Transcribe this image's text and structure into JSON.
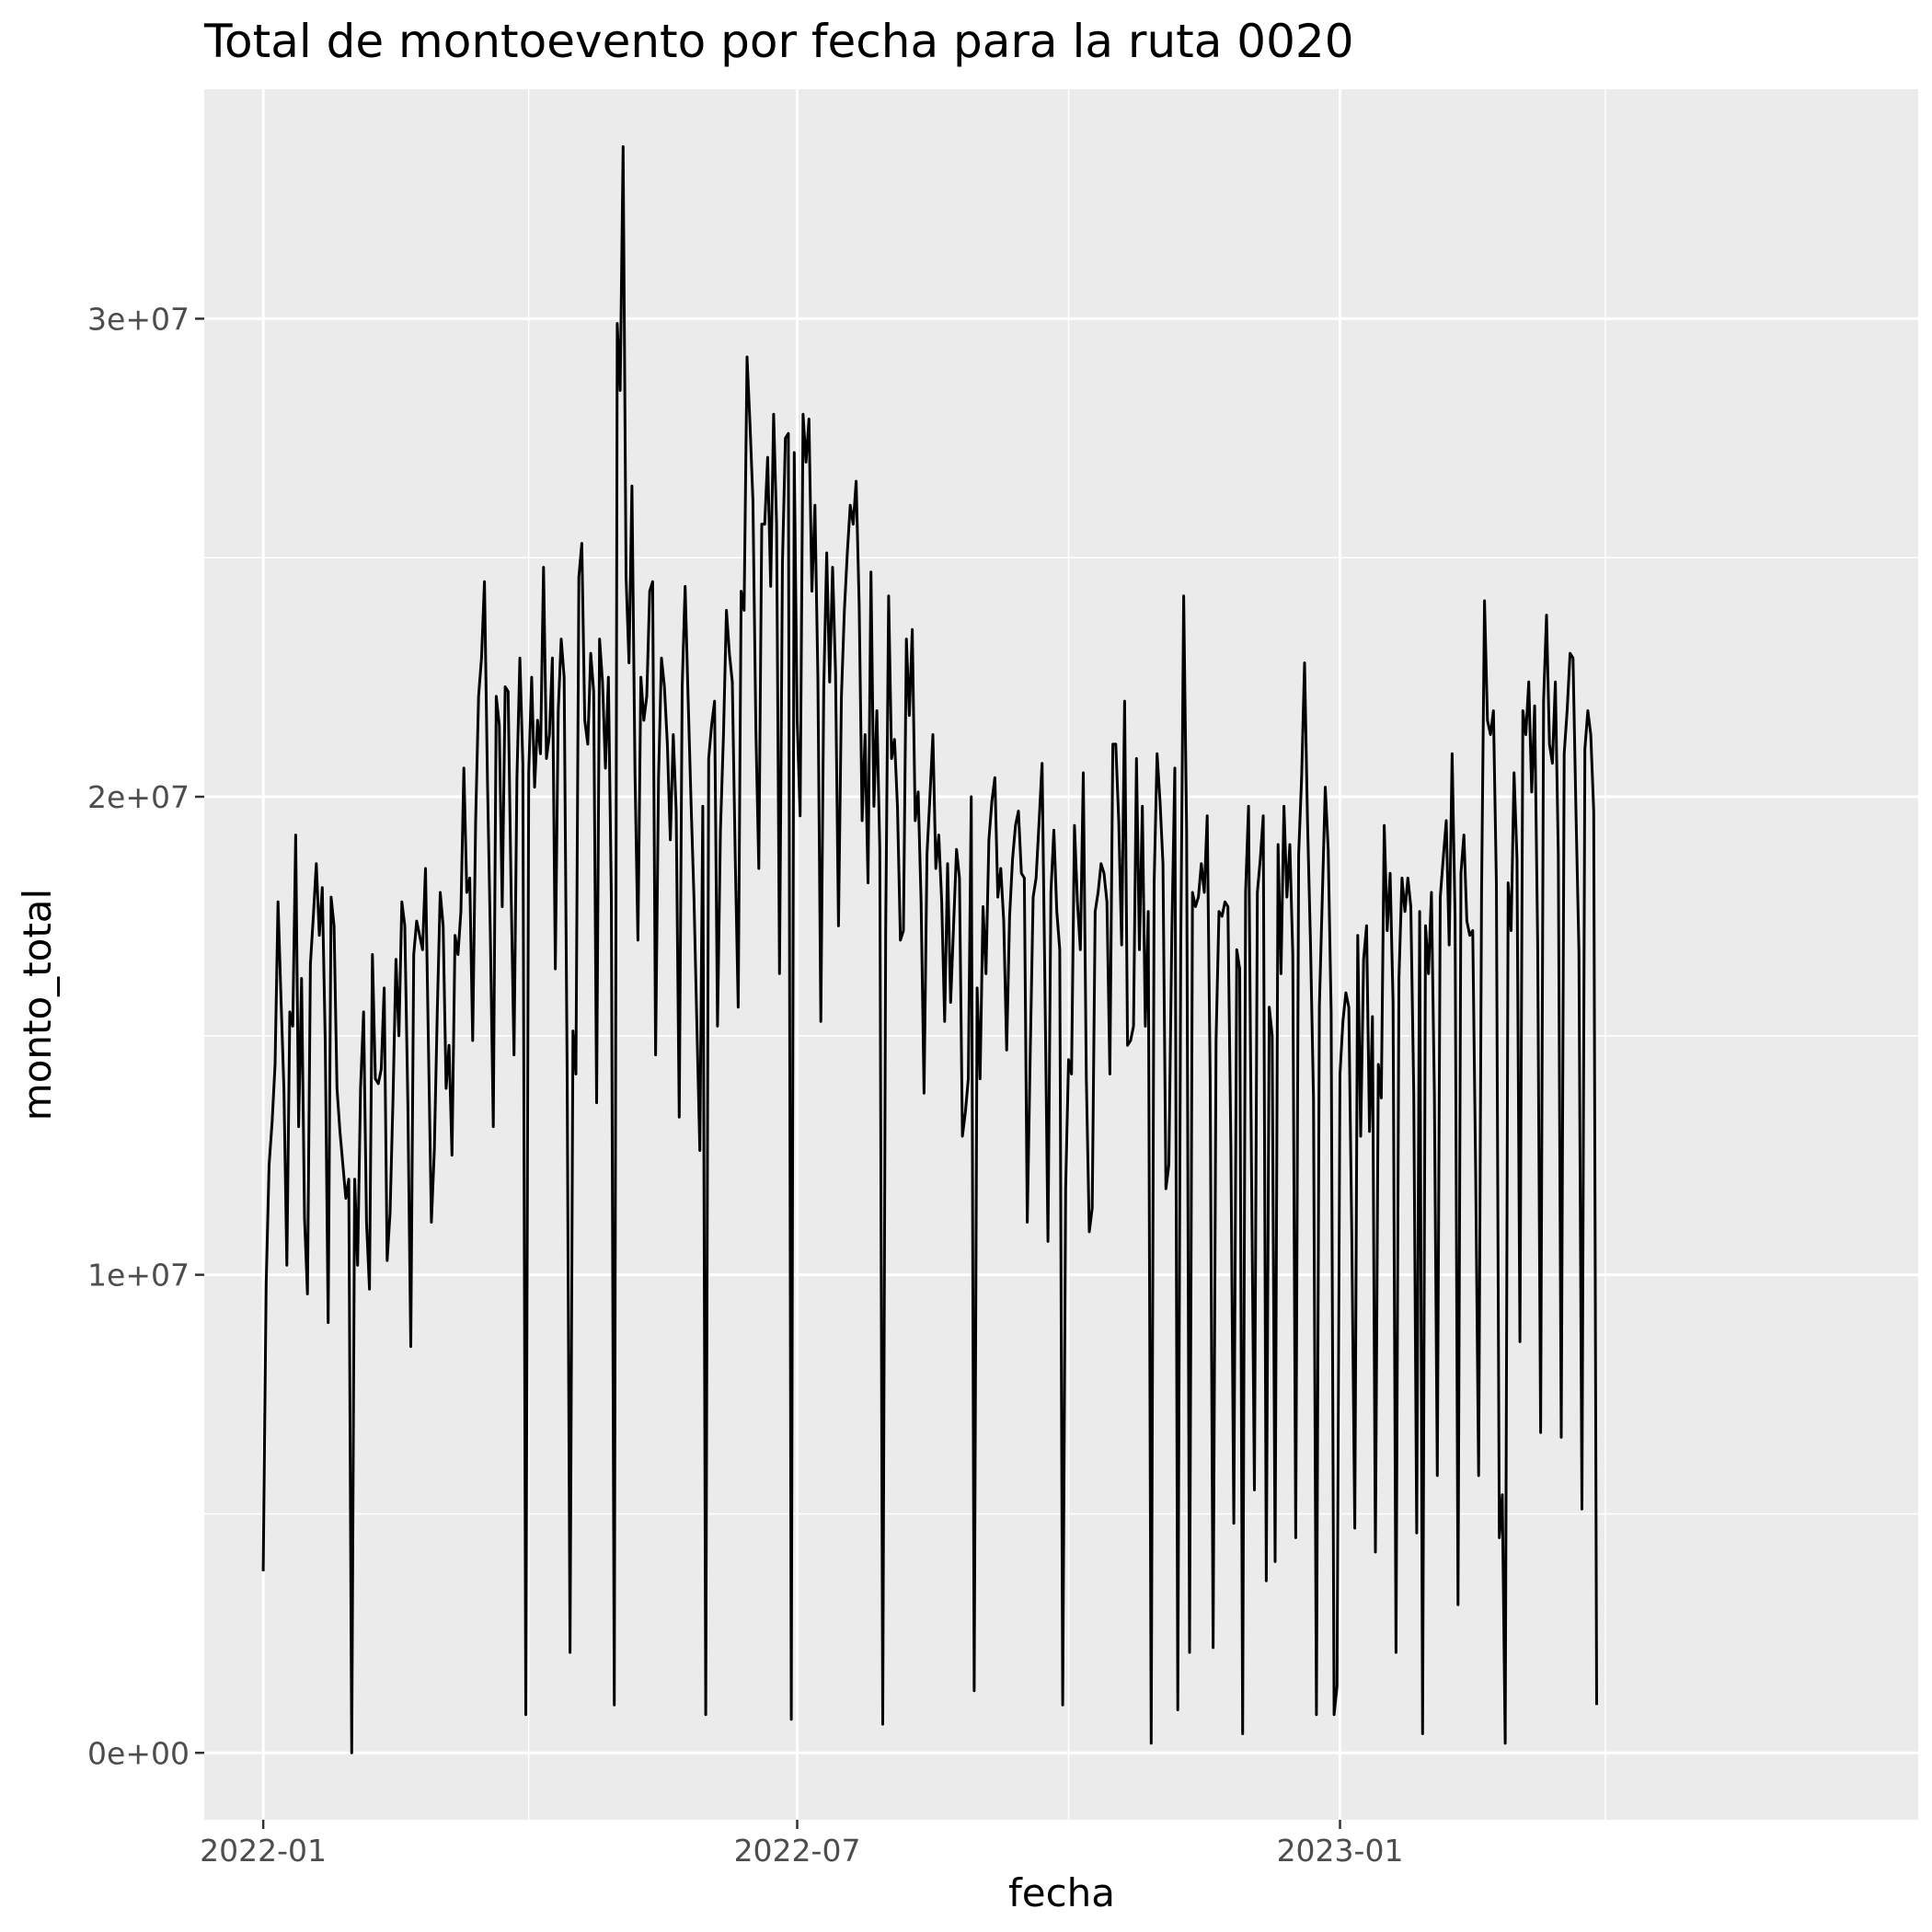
{
  "chart_data": {
    "type": "line",
    "title": "Total de montoevento por fecha para la ruta 0020",
    "xlabel": "fecha",
    "ylabel": "monto_total",
    "x_range": [
      "2021-12-12",
      "2023-07-16"
    ],
    "ylim": [
      -1400000,
      34800000
    ],
    "x_ticks": [
      {
        "date": "2022-01-01",
        "label": "2022-01"
      },
      {
        "date": "2022-07-01",
        "label": "2022-07"
      },
      {
        "date": "2023-01-01",
        "label": "2023-01"
      }
    ],
    "x_minor_ticks": [
      "2022-04-01",
      "2022-10-01",
      "2023-04-01"
    ],
    "y_ticks": [
      {
        "value": 0,
        "label": "0e+00"
      },
      {
        "value": 10000000,
        "label": "1e+07"
      },
      {
        "value": 20000000,
        "label": "2e+07"
      },
      {
        "value": 30000000,
        "label": "3e+07"
      }
    ],
    "y_minor_ticks": [
      5000000,
      15000000,
      25000000
    ],
    "grid": true,
    "colors": {
      "panel": "#ebebeb",
      "grid": "#ffffff",
      "line": "#000000",
      "axis_text": "#4d4d4d"
    },
    "series": [
      {
        "start_date": "2022-01-01",
        "step_days": 1,
        "values": [
          3800000,
          9800000,
          12300000,
          13200000,
          14400000,
          17800000,
          15800000,
          13900000,
          10200000,
          15500000,
          15200000,
          19200000,
          13100000,
          16200000,
          11200000,
          9600000,
          16500000,
          17500000,
          18600000,
          17100000,
          18100000,
          14900000,
          9000000,
          17900000,
          17300000,
          13900000,
          13000000,
          12300000,
          11600000,
          12000000,
          0,
          12000000,
          10200000,
          13900000,
          15500000,
          11100000,
          9700000,
          16700000,
          14100000,
          14000000,
          14300000,
          16000000,
          10300000,
          11300000,
          13700000,
          16600000,
          15000000,
          17800000,
          17300000,
          13600000,
          8500000,
          16700000,
          17400000,
          17100000,
          16800000,
          18500000,
          14800000,
          11100000,
          12600000,
          15500000,
          18000000,
          17300000,
          13900000,
          14800000,
          12500000,
          17100000,
          16700000,
          17600000,
          20600000,
          18000000,
          18300000,
          14900000,
          19500000,
          22100000,
          22900000,
          24500000,
          20400000,
          17100000,
          13100000,
          22100000,
          21500000,
          17700000,
          22300000,
          22200000,
          18100000,
          14600000,
          20400000,
          22900000,
          20700000,
          800000,
          20500000,
          22500000,
          20200000,
          21600000,
          20900000,
          24800000,
          20800000,
          21300000,
          22900000,
          16400000,
          21800000,
          23300000,
          22500000,
          14400000,
          2100000,
          15100000,
          14200000,
          24600000,
          25300000,
          21600000,
          21100000,
          23000000,
          22200000,
          13600000,
          23300000,
          22400000,
          20600000,
          22500000,
          17900000,
          1000000,
          29900000,
          28500000,
          33600000,
          24600000,
          22800000,
          26500000,
          20500000,
          17000000,
          22500000,
          21600000,
          22100000,
          24300000,
          24500000,
          14600000,
          20400000,
          22900000,
          22300000,
          21100000,
          19100000,
          21300000,
          19700000,
          13300000,
          22300000,
          24400000,
          22100000,
          19900000,
          17900000,
          15200000,
          12600000,
          19800000,
          800000,
          20800000,
          21500000,
          22000000,
          15200000,
          19300000,
          21300000,
          23900000,
          23000000,
          22400000,
          18700000,
          15600000,
          24300000,
          23900000,
          29200000,
          27800000,
          26200000,
          21400000,
          18500000,
          25700000,
          25700000,
          27100000,
          24400000,
          28000000,
          25700000,
          16300000,
          24900000,
          27500000,
          27600000,
          700000,
          27200000,
          21600000,
          19600000,
          28000000,
          27000000,
          27900000,
          24300000,
          26100000,
          22500000,
          15300000,
          22300000,
          25100000,
          22400000,
          24800000,
          22600000,
          17300000,
          22100000,
          23900000,
          25100000,
          26100000,
          25700000,
          26600000,
          24000000,
          19500000,
          21300000,
          18200000,
          24700000,
          19800000,
          21800000,
          18900000,
          600000,
          17200000,
          24200000,
          20800000,
          21200000,
          19800000,
          17000000,
          17200000,
          23300000,
          21700000,
          23500000,
          19500000,
          20100000,
          17800000,
          13800000,
          18800000,
          20000000,
          21300000,
          18500000,
          19200000,
          17800000,
          15300000,
          18600000,
          15700000,
          17300000,
          18900000,
          18300000,
          12900000,
          13400000,
          14100000,
          20000000,
          1300000,
          16000000,
          14100000,
          17700000,
          16300000,
          19100000,
          19900000,
          20400000,
          17900000,
          18500000,
          17400000,
          14700000,
          17500000,
          18700000,
          19400000,
          19700000,
          18400000,
          18300000,
          11100000,
          14600000,
          17900000,
          18300000,
          19500000,
          20700000,
          15900000,
          10700000,
          18000000,
          19300000,
          17600000,
          16800000,
          1000000,
          11800000,
          14500000,
          14200000,
          19400000,
          17800000,
          16800000,
          20500000,
          14100000,
          10900000,
          11400000,
          17600000,
          18000000,
          18600000,
          18400000,
          17800000,
          14200000,
          21100000,
          21100000,
          19500000,
          16900000,
          22000000,
          14800000,
          14900000,
          15200000,
          20800000,
          16800000,
          19800000,
          15200000,
          17600000,
          200000,
          18200000,
          20900000,
          19900000,
          18600000,
          11800000,
          12300000,
          17100000,
          20600000,
          900000,
          16800000,
          24200000,
          19300000,
          2100000,
          18000000,
          17700000,
          17900000,
          18600000,
          18000000,
          19600000,
          14100000,
          2200000,
          14900000,
          17600000,
          17500000,
          17800000,
          17700000,
          12700000,
          4800000,
          16800000,
          16400000,
          400000,
          18000000,
          19800000,
          12300000,
          5500000,
          18000000,
          18700000,
          19600000,
          3600000,
          15600000,
          15000000,
          4000000,
          19000000,
          16300000,
          19800000,
          17900000,
          19000000,
          16700000,
          4500000,
          18800000,
          20400000,
          22800000,
          19500000,
          16900000,
          13700000,
          800000,
          15600000,
          17900000,
          20200000,
          18900000,
          15500000,
          800000,
          1400000,
          14200000,
          15300000,
          15900000,
          15600000,
          10900000,
          4700000,
          17100000,
          12900000,
          16600000,
          17300000,
          13000000,
          15400000,
          4200000,
          14400000,
          13700000,
          19400000,
          17200000,
          18400000,
          15700000,
          2100000,
          16200000,
          18300000,
          17600000,
          18300000,
          17700000,
          13800000,
          4600000,
          17600000,
          400000,
          17300000,
          16300000,
          18000000,
          13800000,
          5800000,
          17900000,
          18700000,
          19500000,
          16900000,
          20900000,
          17500000,
          3100000,
          18400000,
          19200000,
          17400000,
          17100000,
          17200000,
          12100000,
          5800000,
          18000000,
          24100000,
          21600000,
          21300000,
          21800000,
          18200000,
          4500000,
          5400000,
          200000,
          18200000,
          17200000,
          20500000,
          18700000,
          8600000,
          21800000,
          21300000,
          22400000,
          20100000,
          21900000,
          16900000,
          6700000,
          22000000,
          23800000,
          21100000,
          20700000,
          22400000,
          18800000,
          6600000,
          20900000,
          21800000,
          23000000,
          22900000,
          19700000,
          16800000,
          5100000,
          21000000,
          21800000,
          21300000,
          19700000,
          1000000
        ]
      }
    ]
  }
}
